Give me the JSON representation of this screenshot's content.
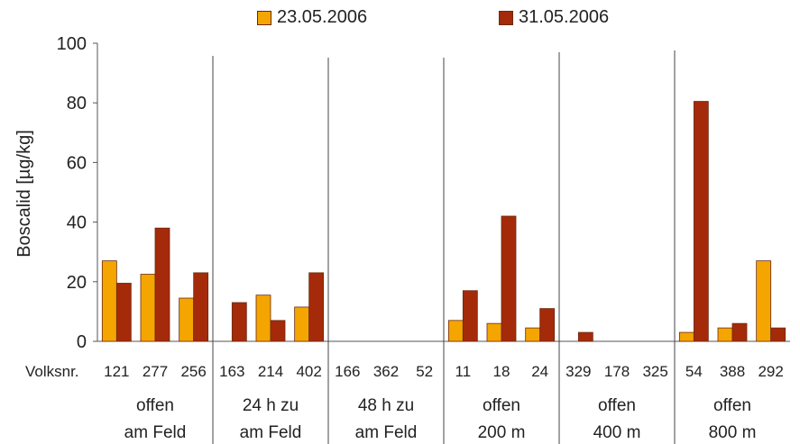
{
  "chart_data": {
    "type": "bar",
    "ylabel": "Boscalid [µg/kg]",
    "ylim": [
      0,
      100
    ],
    "yticks": [
      0,
      20,
      40,
      60,
      80,
      100
    ],
    "row_label": "Volksnr.",
    "grid": false,
    "legend_position": "top",
    "series": [
      {
        "name": "23.05.2006",
        "color": "#f5a500"
      },
      {
        "name": "31.05.2006",
        "color": "#a52a0a"
      }
    ],
    "groups": [
      {
        "label_line1": "offen",
        "label_line2": "am Feld",
        "categories": [
          "121",
          "277",
          "256"
        ],
        "values": [
          [
            27,
            19.5
          ],
          [
            22.5,
            38
          ],
          [
            14.5,
            23
          ]
        ]
      },
      {
        "label_line1": "24 h zu",
        "label_line2": "am Feld",
        "categories": [
          "163",
          "214",
          "402"
        ],
        "values": [
          [
            null,
            13
          ],
          [
            15.5,
            7
          ],
          [
            11.5,
            23
          ]
        ]
      },
      {
        "label_line1": "48 h zu",
        "label_line2": "am Feld",
        "categories": [
          "166",
          "362",
          "52"
        ],
        "values": [
          [
            null,
            null
          ],
          [
            null,
            null
          ],
          [
            null,
            null
          ]
        ]
      },
      {
        "label_line1": "offen",
        "label_line2": "200 m",
        "categories": [
          "11",
          "18",
          "24"
        ],
        "values": [
          [
            7,
            17
          ],
          [
            6,
            42
          ],
          [
            4.5,
            11
          ]
        ]
      },
      {
        "label_line1": "offen",
        "label_line2": "400 m",
        "categories": [
          "329",
          "178",
          "325"
        ],
        "values": [
          [
            null,
            3
          ],
          [
            null,
            null
          ],
          [
            null,
            null
          ]
        ]
      },
      {
        "label_line1": "offen",
        "label_line2": "800 m",
        "categories": [
          "54",
          "388",
          "292"
        ],
        "values": [
          [
            3,
            80.5
          ],
          [
            4.5,
            6
          ],
          [
            27,
            4.5
          ]
        ]
      }
    ]
  }
}
